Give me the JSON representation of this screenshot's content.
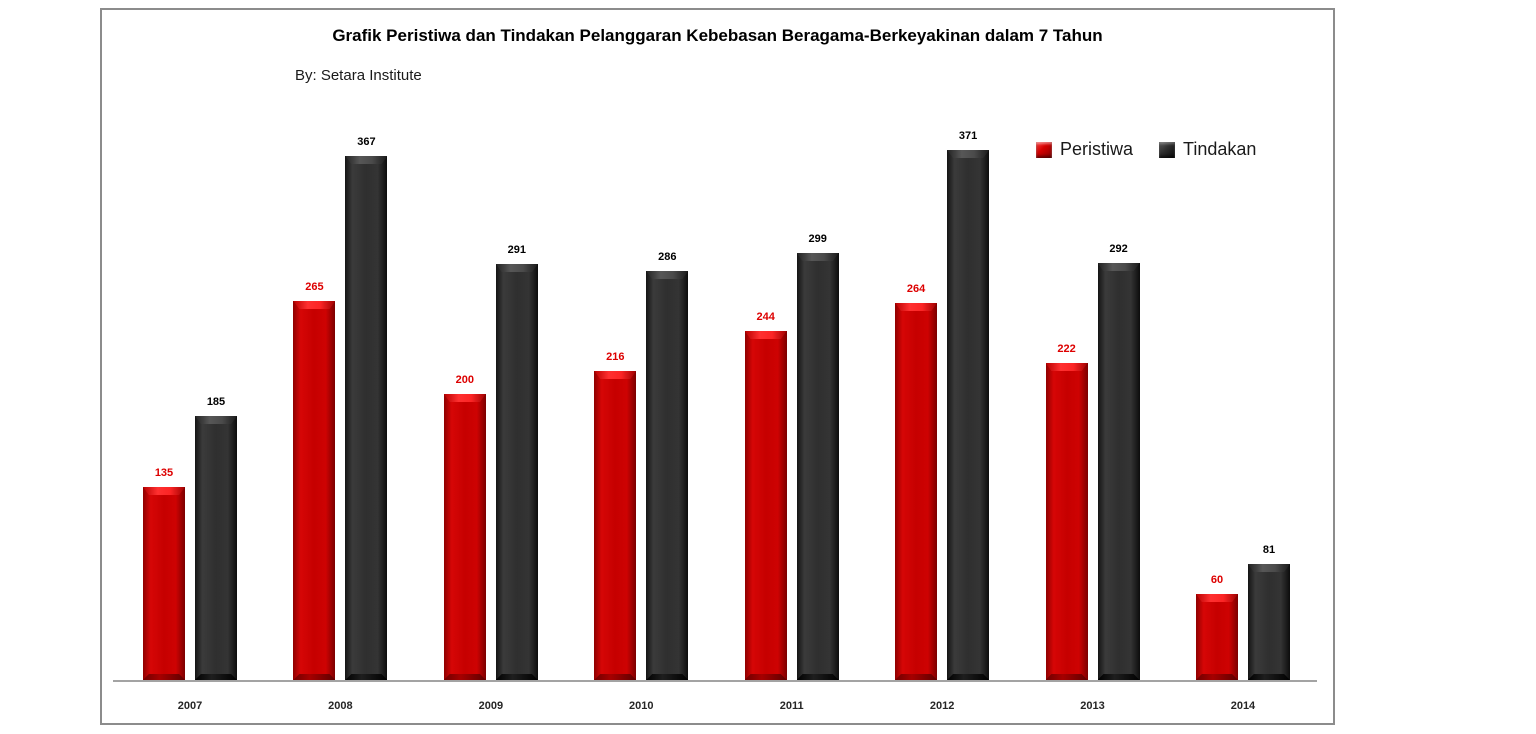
{
  "window": {
    "background": "#ffffff",
    "frame_border_color": "#8C8C8C"
  },
  "chart_data": {
    "type": "bar",
    "title": "Grafik Peristiwa dan Tindakan Pelanggaran Kebebasan Beragama-Berkeyakinan dalam 7 Tahun",
    "subtitle": "By: Setara Institute",
    "categories": [
      "2007",
      "2008",
      "2009",
      "2010",
      "2011",
      "2012",
      "2013",
      "2014"
    ],
    "series": [
      {
        "name": "Peristiwa",
        "color": "#C00000",
        "label_color": "#DD0000",
        "values": [
          135,
          265,
          200,
          216,
          244,
          264,
          222,
          60
        ]
      },
      {
        "name": "Tindakan",
        "color": "#2B2B2B",
        "label_color": "#000000",
        "values": [
          185,
          367,
          291,
          286,
          299,
          371,
          292,
          81
        ]
      }
    ],
    "legend": {
      "position": "top-right"
    },
    "grid": false,
    "y_axis_visible": false,
    "x_axis_line_color": "#A3A3A3",
    "ylim": [
      0,
      380
    ],
    "data_labels": "above-bars"
  }
}
